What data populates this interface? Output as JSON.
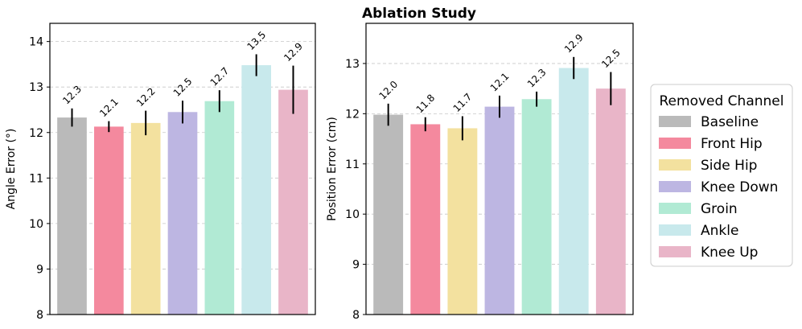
{
  "chart_data": {
    "title": "Ablation Study",
    "legend": {
      "title": "Removed Channel",
      "placement": "right",
      "entries": [
        {
          "label": "Baseline",
          "color": "#bababa"
        },
        {
          "label": "Front Hip",
          "color": "#f4899e"
        },
        {
          "label": "Side Hip",
          "color": "#f3e19f"
        },
        {
          "label": "Knee Down",
          "color": "#bdb6e2"
        },
        {
          "label": "Groin",
          "color": "#b1ead4"
        },
        {
          "label": "Ankle",
          "color": "#c8e9ec"
        },
        {
          "label": "Knee Up",
          "color": "#e9b5c8"
        }
      ]
    },
    "subplots": [
      {
        "type": "bar",
        "ylabel": "Angle Error (°)",
        "ylim": [
          8,
          14.4
        ],
        "yticks": [
          8,
          9,
          10,
          11,
          12,
          13,
          14
        ],
        "grid": true,
        "categories": [
          "Baseline",
          "Front Hip",
          "Side Hip",
          "Knee Down",
          "Groin",
          "Ankle",
          "Knee Up"
        ],
        "values": [
          12.33,
          12.13,
          12.21,
          12.45,
          12.69,
          13.48,
          12.94
        ],
        "errors": [
          0.2,
          0.12,
          0.27,
          0.25,
          0.24,
          0.24,
          0.53
        ],
        "labels": [
          "12.3",
          "12.1",
          "12.2",
          "12.5",
          "12.7",
          "13.5",
          "12.9"
        ]
      },
      {
        "type": "bar",
        "ylabel": "Position Error (cm)",
        "ylim": [
          8,
          13.8
        ],
        "yticks": [
          8,
          9,
          10,
          11,
          12,
          13
        ],
        "grid": true,
        "categories": [
          "Baseline",
          "Front Hip",
          "Side Hip",
          "Knee Down",
          "Groin",
          "Ankle",
          "Knee Up"
        ],
        "values": [
          11.98,
          11.79,
          11.71,
          12.14,
          12.29,
          12.91,
          12.5
        ],
        "errors": [
          0.22,
          0.14,
          0.24,
          0.22,
          0.15,
          0.22,
          0.33
        ],
        "labels": [
          "12.0",
          "11.8",
          "11.7",
          "12.1",
          "12.3",
          "12.9",
          "12.5"
        ]
      }
    ]
  }
}
